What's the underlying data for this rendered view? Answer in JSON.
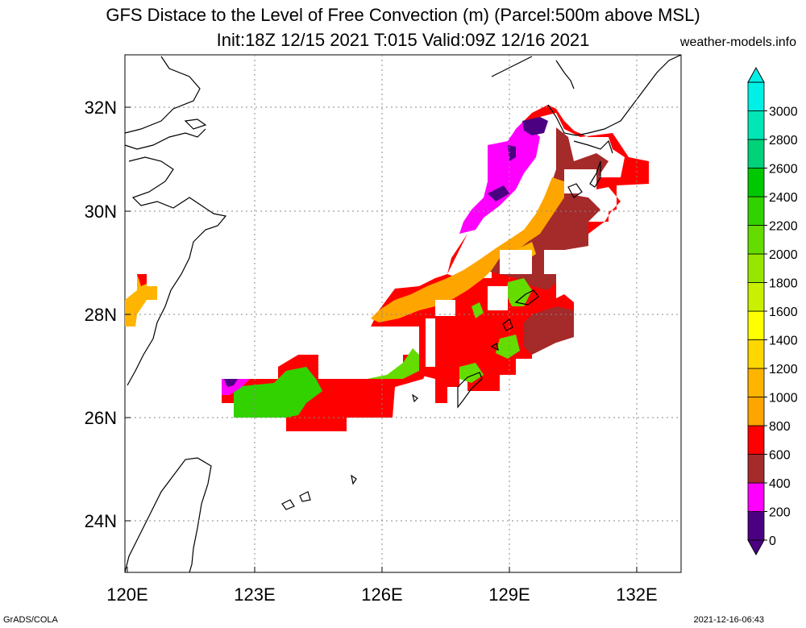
{
  "title_line1": "GFS Distace to the Level of Free Convection (m) (Parcel:500m above MSL)",
  "title_line2": "Init:18Z 12/15 2021 T:015 Valid:09Z 12/16 2021",
  "site": "weather-models.info",
  "footer_left": "GrADS/COLA",
  "footer_right": "2021-12-16-06:43",
  "lon_ticks": [
    "120E",
    "123E",
    "126E",
    "129E",
    "132E"
  ],
  "lat_ticks": [
    "32N",
    "30N",
    "28N",
    "26N",
    "24N"
  ],
  "colorbar": {
    "labels": [
      "0",
      "200",
      "400",
      "600",
      "800",
      "1000",
      "1200",
      "1400",
      "1600",
      "1800",
      "2000",
      "2200",
      "2400",
      "2600",
      "2800",
      "3000"
    ],
    "colors": [
      "#4b0082",
      "#ff00ff",
      "#a52a2a",
      "#ff0000",
      "#ffa500",
      "#ffb400",
      "#ffd700",
      "#ffff00",
      "#c8f000",
      "#96e600",
      "#64dc00",
      "#32d200",
      "#00c800",
      "#00d27a",
      "#00e6b4",
      "#00f0e6"
    ],
    "under_color": "#4b0082",
    "over_color": "#00f0e6"
  }
}
